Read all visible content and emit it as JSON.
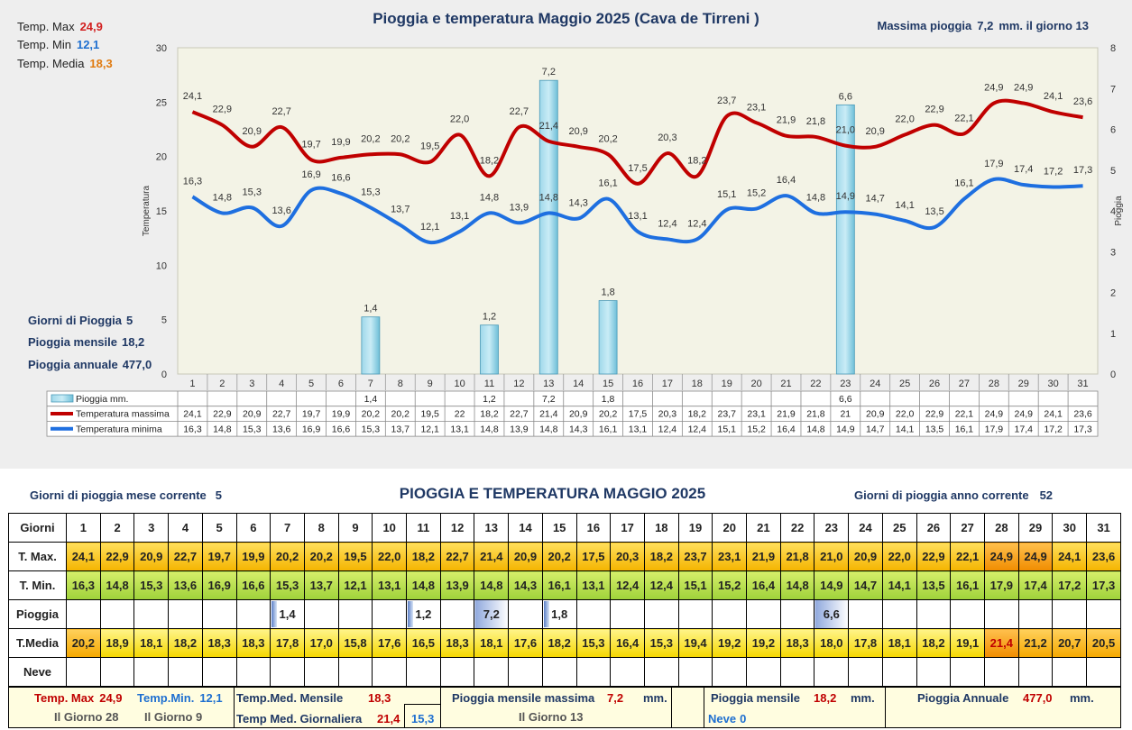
{
  "chart": {
    "title": "Pioggia e temperatura Maggio 2025 (Cava de Tirreni )",
    "max_rain_note": {
      "label": "Massima pioggia",
      "value": "7,2",
      "suffix": "mm. il giorno 13"
    },
    "temp_stats": [
      {
        "label": "Temp. Max",
        "value": "24,9",
        "color": "#d21f1f"
      },
      {
        "label": "Temp. Min",
        "value": "12,1",
        "color": "#1e6fd0"
      },
      {
        "label": "Temp. Media",
        "value": "18,3",
        "color": "#e07b10"
      }
    ],
    "rain_stats": [
      {
        "label": "Giorni di Pioggia",
        "value": "5"
      },
      {
        "label": "Pioggia mensile",
        "value": "18,2"
      },
      {
        "label": "Pioggia annuale",
        "value": "477,0"
      }
    ],
    "legend": {
      "rain": "Pioggia mm.",
      "tmax": "Temperatura massima",
      "tmin": "Temperatura minima"
    },
    "y_left_label": "Temperatura",
    "y_right_label": "Pioggia",
    "colors": {
      "tmax": "#c00000",
      "tmin": "#1e6fe0",
      "rain": "#7fc9e0",
      "plot_bg": "#f3f3e6"
    }
  },
  "chart_data": {
    "type": "line",
    "title": "Pioggia e temperatura Maggio 2025 (Cava de Tirreni )",
    "x": [
      1,
      2,
      3,
      4,
      5,
      6,
      7,
      8,
      9,
      10,
      11,
      12,
      13,
      14,
      15,
      16,
      17,
      18,
      19,
      20,
      21,
      22,
      23,
      24,
      25,
      26,
      27,
      28,
      29,
      30,
      31
    ],
    "ylabel": "Temperatura",
    "ylim": [
      0,
      30
    ],
    "y_ticks": [
      0,
      5,
      10,
      15,
      20,
      25,
      30
    ],
    "y2label": "Pioggia",
    "y2lim": [
      0,
      8
    ],
    "y2_ticks": [
      0,
      1,
      2,
      3,
      4,
      5,
      6,
      7,
      8
    ],
    "grid": false,
    "series": [
      {
        "name": "Temperatura massima",
        "axis": "left",
        "kind": "line",
        "values": [
          24.1,
          22.9,
          20.9,
          22.7,
          19.7,
          19.9,
          20.2,
          20.2,
          19.5,
          22.0,
          18.2,
          22.7,
          21.4,
          20.9,
          20.2,
          17.5,
          20.3,
          18.2,
          23.7,
          23.1,
          21.9,
          21.8,
          21.0,
          20.9,
          22.0,
          22.9,
          22.1,
          24.9,
          24.9,
          24.1,
          23.6
        ],
        "labels": [
          "24,1",
          "22,9",
          "20,9",
          "22,7",
          "19,7",
          "19,9",
          "20,2",
          "20,2",
          "19,5",
          "22,0",
          "18,2",
          "22,7",
          "21,4",
          "20,9",
          "20,2",
          "17,5",
          "20,3",
          "18,2",
          "23,7",
          "23,1",
          "21,9",
          "21,8",
          "21,0",
          "20,9",
          "22,0",
          "22,9",
          "22,1",
          "24,9",
          "24,9",
          "24,1",
          "23,6"
        ],
        "table": [
          "24,1",
          "22,9",
          "20,9",
          "22,7",
          "19,7",
          "19,9",
          "20,2",
          "20,2",
          "19,5",
          "22",
          "18,2",
          "22,7",
          "21,4",
          "20,9",
          "20,2",
          "17,5",
          "20,3",
          "18,2",
          "23,7",
          "23,1",
          "21,9",
          "21,8",
          "21",
          "20,9",
          "22,0",
          "22,9",
          "22,1",
          "24,9",
          "24,9",
          "24,1",
          "23,6"
        ]
      },
      {
        "name": "Temperatura minima",
        "axis": "left",
        "kind": "line",
        "values": [
          16.3,
          14.8,
          15.3,
          13.6,
          16.9,
          16.6,
          15.3,
          13.7,
          12.1,
          13.1,
          14.8,
          13.9,
          14.8,
          14.3,
          16.1,
          13.1,
          12.4,
          12.4,
          15.1,
          15.2,
          16.4,
          14.8,
          14.9,
          14.7,
          14.1,
          13.5,
          16.1,
          17.9,
          17.4,
          17.2,
          17.3
        ],
        "labels": [
          "16,3",
          "14,8",
          "15,3",
          "13,6",
          "16,9",
          "16,6",
          "15,3",
          "13,7",
          "12,1",
          "13,1",
          "14,8",
          "13,9",
          "14,8",
          "14,3",
          "16,1",
          "13,1",
          "12,4",
          "12,4",
          "15,1",
          "15,2",
          "16,4",
          "14,8",
          "14,9",
          "14,7",
          "14,1",
          "13,5",
          "16,1",
          "17,9",
          "17,4",
          "17,2",
          "17,3"
        ],
        "table": [
          "16,3",
          "14,8",
          "15,3",
          "13,6",
          "16,9",
          "16,6",
          "15,3",
          "13,7",
          "12,1",
          "13,1",
          "14,8",
          "13,9",
          "14,8",
          "14,3",
          "16,1",
          "13,1",
          "12,4",
          "12,4",
          "15,1",
          "15,2",
          "16,4",
          "14,8",
          "14,9",
          "14,7",
          "14,1",
          "13,5",
          "16,1",
          "17,9",
          "17,4",
          "17,2",
          "17,3"
        ]
      },
      {
        "name": "Pioggia mm.",
        "axis": "right",
        "kind": "bar",
        "values": [
          null,
          null,
          null,
          null,
          null,
          null,
          1.4,
          null,
          null,
          null,
          1.2,
          null,
          7.2,
          null,
          1.8,
          null,
          null,
          null,
          null,
          null,
          null,
          null,
          6.6,
          null,
          null,
          null,
          null,
          null,
          null,
          null,
          null
        ],
        "labels": [
          "",
          "",
          "",
          "",
          "",
          "",
          "1,4",
          "",
          "",
          "",
          "1,2",
          "",
          "7,2",
          "",
          "1,8",
          "",
          "",
          "",
          "",
          "",
          "",
          "",
          "6,6",
          "",
          "",
          "",
          "",
          "",
          "",
          "",
          ""
        ]
      }
    ]
  },
  "table": {
    "title": "PIOGGIA E TEMPERATURA MAGGIO 2025",
    "days_month": {
      "label": "Giorni di pioggia mese corrente",
      "value": "5"
    },
    "days_year": {
      "label": "Giorni di pioggia anno corrente",
      "value": "52"
    },
    "row_labels": {
      "days": "Giorni",
      "tmax": "T. Max.",
      "tmin": "T. Min.",
      "rain": "Pioggia",
      "tmed": "T.Media",
      "snow": "Neve"
    },
    "days": [
      "1",
      "2",
      "3",
      "4",
      "5",
      "6",
      "7",
      "8",
      "9",
      "10",
      "11",
      "12",
      "13",
      "14",
      "15",
      "16",
      "17",
      "18",
      "19",
      "20",
      "21",
      "22",
      "23",
      "24",
      "25",
      "26",
      "27",
      "28",
      "29",
      "30",
      "31"
    ],
    "tmax": [
      "24,1",
      "22,9",
      "20,9",
      "22,7",
      "19,7",
      "19,9",
      "20,2",
      "20,2",
      "19,5",
      "22,0",
      "18,2",
      "22,7",
      "21,4",
      "20,9",
      "20,2",
      "17,5",
      "20,3",
      "18,2",
      "23,7",
      "23,1",
      "21,9",
      "21,8",
      "21,0",
      "20,9",
      "22,0",
      "22,9",
      "22,1",
      "24,9",
      "24,9",
      "24,1",
      "23,6"
    ],
    "tmin": [
      "16,3",
      "14,8",
      "15,3",
      "13,6",
      "16,9",
      "16,6",
      "15,3",
      "13,7",
      "12,1",
      "13,1",
      "14,8",
      "13,9",
      "14,8",
      "14,3",
      "16,1",
      "13,1",
      "12,4",
      "12,4",
      "15,1",
      "15,2",
      "16,4",
      "14,8",
      "14,9",
      "14,7",
      "14,1",
      "13,5",
      "16,1",
      "17,9",
      "17,4",
      "17,2",
      "17,3"
    ],
    "rain": [
      "",
      "",
      "",
      "",
      "",
      "",
      "1,4",
      "",
      "",
      "",
      "1,2",
      "",
      "7,2",
      "",
      "1,8",
      "",
      "",
      "",
      "",
      "",
      "",
      "",
      "6,6",
      "",
      "",
      "",
      "",
      "",
      "",
      "",
      ""
    ],
    "tmed": [
      "20,2",
      "18,9",
      "18,1",
      "18,2",
      "18,3",
      "18,3",
      "17,8",
      "17,0",
      "15,8",
      "17,6",
      "16,5",
      "18,3",
      "18,1",
      "17,6",
      "18,2",
      "15,3",
      "16,4",
      "15,3",
      "19,4",
      "19,2",
      "19,2",
      "18,3",
      "18,0",
      "17,8",
      "18,1",
      "18,2",
      "19,1",
      "21,4",
      "21,2",
      "20,7",
      "20,5"
    ],
    "snow": [
      "",
      "",
      "",
      "",
      "",
      "",
      "",
      "",
      "",
      "",
      "",
      "",
      "",
      "",
      "",
      "",
      "",
      "",
      "",
      "",
      "",
      "",
      "",
      "",
      "",
      "",
      "",
      "",
      "",
      "",
      ""
    ]
  },
  "summary": {
    "tmax": {
      "label": "Temp. Max",
      "value": "24,9",
      "day": "Il Giorno 28"
    },
    "tmin": {
      "label": "Temp.Min.",
      "value": "12,1",
      "day": "Il Giorno  9"
    },
    "tmed_month": {
      "label": "Temp.Med. Mensile",
      "value": "18,3"
    },
    "tmed_day": {
      "label": "Temp Med. Giornaliera",
      "value_max": "21,4",
      "value_min": "15,3"
    },
    "rain_max": {
      "label": "Pioggia mensile massima",
      "value": "7,2",
      "unit": "mm.",
      "day": "Il Giorno 13"
    },
    "rain_month": {
      "label": "Pioggia mensile",
      "value": "18,2",
      "unit": "mm."
    },
    "snow": {
      "label": "Neve",
      "value": "0"
    },
    "rain_year": {
      "label": "Pioggia Annuale",
      "value": "477,0",
      "unit": "mm."
    }
  }
}
